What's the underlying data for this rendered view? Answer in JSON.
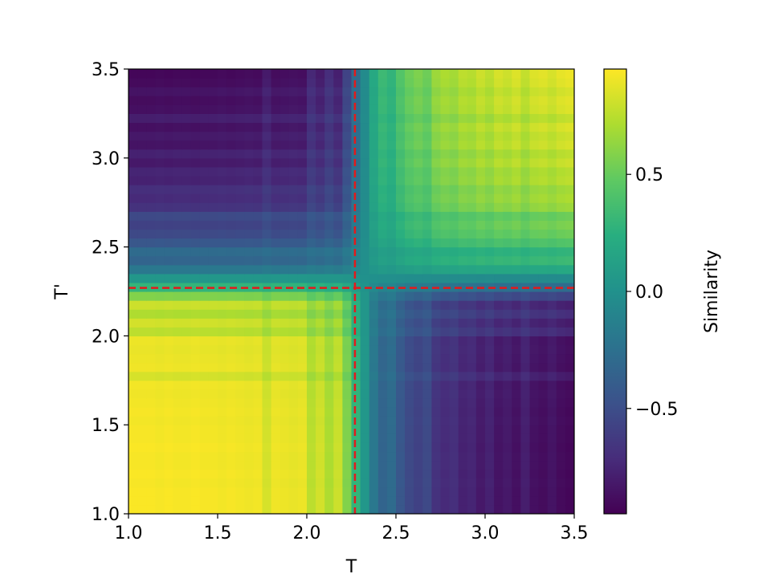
{
  "chart_data": {
    "type": "heatmap",
    "title": "",
    "xlabel": "T",
    "ylabel": "T'",
    "xlim": [
      1.0,
      3.5
    ],
    "ylim": [
      1.0,
      3.5
    ],
    "x_ticks": [
      "1.0",
      "1.5",
      "2.0",
      "2.5",
      "3.0",
      "3.5"
    ],
    "y_ticks": [
      "1.0",
      "1.5",
      "2.0",
      "2.5",
      "3.0",
      "3.5"
    ],
    "colormap": "viridis",
    "colorbar": {
      "label": "Similarity",
      "range": [
        -0.95,
        0.95
      ],
      "ticks": [
        "−0.5",
        "0.0",
        "0.5"
      ],
      "tick_values": [
        -0.5,
        0.0,
        0.5
      ]
    },
    "critical_line": {
      "value": 2.27,
      "color": "#e31a1c",
      "style": "dashed"
    },
    "grid_values": [
      1.0,
      1.05,
      1.1,
      1.15,
      1.2,
      1.25,
      1.3,
      1.35,
      1.4,
      1.45,
      1.5,
      1.55,
      1.6,
      1.65,
      1.7,
      1.75,
      1.8,
      1.85,
      1.9,
      1.95,
      2.0,
      2.05,
      2.1,
      2.15,
      2.2,
      2.25,
      2.3,
      2.35,
      2.4,
      2.45,
      2.5,
      2.55,
      2.6,
      2.65,
      2.7,
      2.75,
      2.8,
      2.85,
      2.9,
      2.95,
      3.0,
      3.05,
      3.1,
      3.15,
      3.2,
      3.25,
      3.3,
      3.35,
      3.4,
      3.45
    ],
    "order_parameter": [
      0.97,
      0.97,
      0.97,
      0.96,
      0.97,
      0.96,
      0.96,
      0.97,
      0.96,
      0.96,
      0.95,
      0.96,
      0.95,
      0.94,
      0.95,
      0.86,
      0.94,
      0.93,
      0.92,
      0.93,
      0.78,
      0.85,
      0.74,
      0.83,
      0.6,
      0.3,
      0.05,
      -0.2,
      -0.35,
      -0.3,
      -0.45,
      -0.55,
      -0.6,
      -0.55,
      -0.7,
      -0.75,
      -0.72,
      -0.8,
      -0.78,
      -0.85,
      -0.8,
      -0.88,
      -0.85,
      -0.9,
      -0.82,
      -0.9,
      -0.92,
      -0.88,
      -0.93,
      -0.95
    ]
  }
}
